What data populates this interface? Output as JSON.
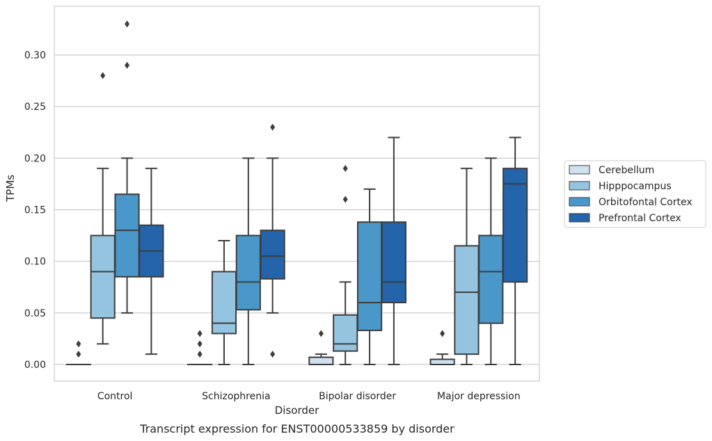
{
  "chart_data": {
    "type": "box",
    "caption": "Transcript expression for ENST00000533859 by disorder",
    "xlabel": "Disorder",
    "ylabel": "TPMs",
    "ylim": [
      -0.016,
      0.347
    ],
    "yticks": [
      0.0,
      0.05,
      0.1,
      0.15,
      0.2,
      0.25,
      0.3
    ],
    "ytick_labels": [
      "0.00",
      "0.05",
      "0.10",
      "0.15",
      "0.20",
      "0.25",
      "0.30"
    ],
    "grid": "horizontal",
    "legend_position": "right-center",
    "categories": [
      "Control",
      "Schizophrenia",
      "Bipolar disorder",
      "Major depression"
    ],
    "series": [
      {
        "name": "Cerebellum",
        "color": "#d0e1f2",
        "boxes": [
          {
            "whislo": 0.0,
            "q1": 0.0,
            "med": 0.0,
            "q3": 0.0,
            "whishi": 0.0,
            "fliers": [
              0.01,
              0.02
            ]
          },
          {
            "whislo": 0.0,
            "q1": 0.0,
            "med": 0.0,
            "q3": 0.0,
            "whishi": 0.0,
            "fliers": [
              0.01,
              0.02,
              0.03
            ]
          },
          {
            "whislo": 0.0,
            "q1": 0.0,
            "med": 0.0,
            "q3": 0.007,
            "whishi": 0.01,
            "fliers": [
              0.03
            ]
          },
          {
            "whislo": 0.0,
            "q1": 0.0,
            "med": 0.0,
            "q3": 0.005,
            "whishi": 0.01,
            "fliers": [
              0.03
            ]
          }
        ]
      },
      {
        "name": "Hipppocampus",
        "color": "#94c4df",
        "boxes": [
          {
            "whislo": 0.02,
            "q1": 0.045,
            "med": 0.09,
            "q3": 0.125,
            "whishi": 0.19,
            "fliers": [
              0.28
            ]
          },
          {
            "whislo": 0.0,
            "q1": 0.03,
            "med": 0.04,
            "q3": 0.09,
            "whishi": 0.12,
            "fliers": []
          },
          {
            "whislo": 0.0,
            "q1": 0.013,
            "med": 0.02,
            "q3": 0.048,
            "whishi": 0.08,
            "fliers": [
              0.16,
              0.19
            ]
          },
          {
            "whislo": 0.0,
            "q1": 0.01,
            "med": 0.07,
            "q3": 0.115,
            "whishi": 0.19,
            "fliers": []
          }
        ]
      },
      {
        "name": "Orbitofontal Cortex",
        "color": "#4a98c9",
        "boxes": [
          {
            "whislo": 0.05,
            "q1": 0.085,
            "med": 0.13,
            "q3": 0.165,
            "whishi": 0.2,
            "fliers": [
              0.29,
              0.33
            ]
          },
          {
            "whislo": 0.0,
            "q1": 0.053,
            "med": 0.08,
            "q3": 0.125,
            "whishi": 0.2,
            "fliers": []
          },
          {
            "whislo": 0.0,
            "q1": 0.033,
            "med": 0.06,
            "q3": 0.138,
            "whishi": 0.17,
            "fliers": []
          },
          {
            "whislo": 0.0,
            "q1": 0.04,
            "med": 0.09,
            "q3": 0.125,
            "whishi": 0.2,
            "fliers": []
          }
        ]
      },
      {
        "name": "Prefrontal Cortex",
        "color": "#2364aa",
        "boxes": [
          {
            "whislo": 0.01,
            "q1": 0.085,
            "med": 0.11,
            "q3": 0.135,
            "whishi": 0.19,
            "fliers": []
          },
          {
            "whislo": 0.05,
            "q1": 0.083,
            "med": 0.105,
            "q3": 0.13,
            "whishi": 0.2,
            "fliers": [
              0.01,
              0.23
            ]
          },
          {
            "whislo": 0.0,
            "q1": 0.06,
            "med": 0.08,
            "q3": 0.138,
            "whishi": 0.22,
            "fliers": []
          },
          {
            "whislo": 0.0,
            "q1": 0.08,
            "med": 0.175,
            "q3": 0.19,
            "whishi": 0.22,
            "fliers": []
          }
        ]
      }
    ]
  }
}
